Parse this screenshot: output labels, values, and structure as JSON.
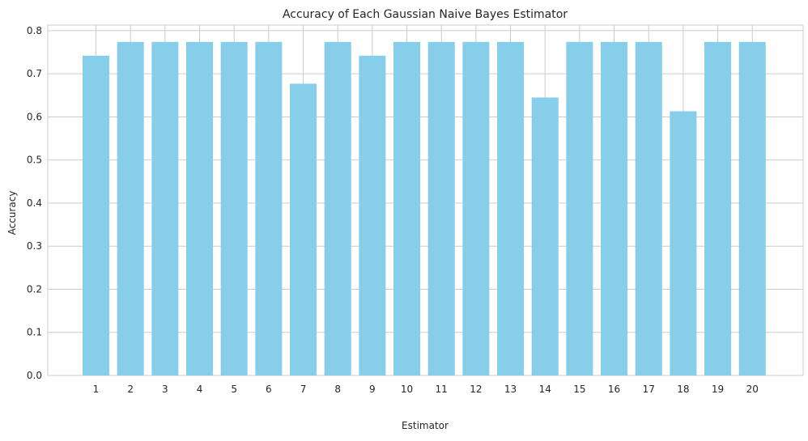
{
  "chart_data": {
    "type": "bar",
    "title": "Accuracy of Each Gaussian Naive Bayes Estimator",
    "xlabel": "Estimator",
    "ylabel": "Accuracy",
    "categories": [
      "1",
      "2",
      "3",
      "4",
      "5",
      "6",
      "7",
      "8",
      "9",
      "10",
      "11",
      "12",
      "13",
      "14",
      "15",
      "16",
      "17",
      "18",
      "19",
      "20"
    ],
    "values": [
      0.742,
      0.774,
      0.774,
      0.774,
      0.774,
      0.774,
      0.677,
      0.774,
      0.742,
      0.774,
      0.774,
      0.774,
      0.774,
      0.645,
      0.774,
      0.774,
      0.774,
      0.613,
      0.774,
      0.774
    ],
    "ylim": [
      0,
      0.813
    ],
    "yticks": [
      "0.0",
      "0.1",
      "0.2",
      "0.3",
      "0.4",
      "0.5",
      "0.6",
      "0.7",
      "0.8"
    ],
    "bar_color": "#87ceeb",
    "grid": true
  }
}
